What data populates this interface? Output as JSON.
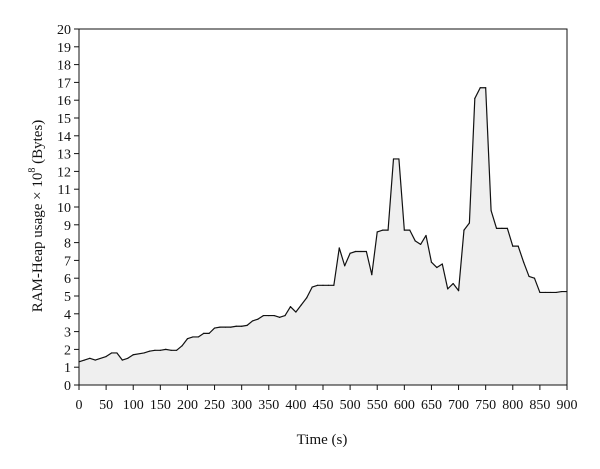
{
  "chart_data": {
    "type": "area",
    "title": "",
    "xlabel": "Time (s)",
    "ylabel_main": "RAM-Heap usage × 10",
    "ylabel_exponent": "8",
    "ylabel_unit": " (Bytes)",
    "xlim": [
      0,
      900
    ],
    "ylim": [
      0,
      20
    ],
    "x_ticks": [
      0,
      50,
      100,
      150,
      200,
      250,
      300,
      350,
      400,
      450,
      500,
      550,
      600,
      650,
      700,
      750,
      800,
      850,
      900
    ],
    "y_ticks": [
      0,
      1,
      2,
      3,
      4,
      5,
      6,
      7,
      8,
      9,
      10,
      11,
      12,
      13,
      14,
      15,
      16,
      17,
      18,
      19,
      20
    ],
    "grid": false,
    "legend": "none",
    "fill_color": "#efefef",
    "line_color": "#111111",
    "x": [
      0,
      10,
      20,
      30,
      50,
      60,
      70,
      80,
      90,
      100,
      120,
      130,
      140,
      150,
      160,
      170,
      180,
      190,
      200,
      210,
      220,
      230,
      240,
      250,
      260,
      270,
      280,
      290,
      300,
      310,
      320,
      330,
      340,
      350,
      360,
      370,
      380,
      390,
      400,
      410,
      420,
      430,
      440,
      450,
      460,
      470,
      480,
      490,
      500,
      510,
      520,
      530,
      540,
      550,
      560,
      570,
      580,
      590,
      600,
      610,
      620,
      630,
      640,
      650,
      660,
      670,
      680,
      690,
      700,
      710,
      720,
      730,
      740,
      750,
      760,
      770,
      780,
      790,
      800,
      810,
      820,
      830,
      840,
      850,
      860,
      870,
      880,
      890,
      900
    ],
    "y": [
      1.3,
      1.4,
      1.5,
      1.4,
      1.6,
      1.8,
      1.8,
      1.4,
      1.5,
      1.7,
      1.8,
      1.9,
      1.95,
      1.95,
      2.0,
      1.95,
      1.95,
      2.2,
      2.6,
      2.7,
      2.7,
      2.9,
      2.9,
      3.2,
      3.25,
      3.25,
      3.25,
      3.3,
      3.3,
      3.35,
      3.6,
      3.7,
      3.9,
      3.9,
      3.9,
      3.8,
      3.9,
      4.4,
      4.1,
      4.5,
      4.9,
      5.5,
      5.6,
      5.6,
      5.6,
      5.6,
      7.7,
      6.7,
      7.4,
      7.5,
      7.5,
      7.5,
      6.2,
      8.6,
      8.7,
      8.7,
      12.7,
      12.7,
      8.7,
      8.7,
      8.1,
      7.9,
      8.4,
      6.9,
      6.6,
      6.8,
      5.4,
      5.7,
      5.3,
      8.7,
      9.1,
      16.1,
      16.7,
      16.7,
      9.8,
      8.8,
      8.8,
      8.8,
      7.8,
      7.8,
      6.9,
      6.1,
      6.0,
      5.2,
      5.2,
      5.2,
      5.2,
      5.25,
      5.25
    ]
  }
}
